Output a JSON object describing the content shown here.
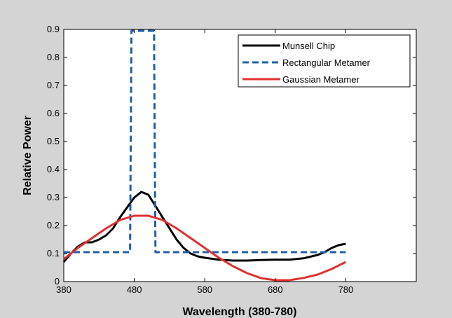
{
  "chart_data": {
    "type": "line",
    "title": "",
    "xlabel": "Wavelength (380-780)",
    "ylabel": "Relative Power",
    "xlim": [
      380,
      880
    ],
    "ylim": [
      0,
      0.9
    ],
    "xticks": [
      380,
      480,
      580,
      680,
      780
    ],
    "yticks": [
      0,
      0.1,
      0.2,
      0.3,
      0.4,
      0.5,
      0.6,
      0.7,
      0.8,
      0.9
    ],
    "grid": false,
    "legend_position": "top-right",
    "series": [
      {
        "name": "Munsell Chip",
        "color": "#000000",
        "style": "solid",
        "x": [
          380,
          390,
          400,
          410,
          420,
          430,
          440,
          450,
          460,
          470,
          480,
          490,
          500,
          510,
          520,
          530,
          540,
          550,
          560,
          570,
          580,
          600,
          620,
          640,
          660,
          680,
          700,
          720,
          740,
          750,
          760,
          770,
          780
        ],
        "y": [
          0.07,
          0.1,
          0.125,
          0.14,
          0.14,
          0.15,
          0.165,
          0.19,
          0.23,
          0.265,
          0.3,
          0.32,
          0.31,
          0.27,
          0.23,
          0.19,
          0.15,
          0.12,
          0.1,
          0.09,
          0.085,
          0.078,
          0.075,
          0.075,
          0.077,
          0.078,
          0.078,
          0.083,
          0.095,
          0.105,
          0.12,
          0.13,
          0.135
        ]
      },
      {
        "name": "Rectangular Metamer",
        "color": "#1f5fa8",
        "style": "dashed",
        "x": [
          380,
          474,
          476,
          480,
          505,
          508,
          510,
          780
        ],
        "y": [
          0.105,
          0.105,
          0.895,
          0.895,
          0.895,
          0.895,
          0.105,
          0.105
        ]
      },
      {
        "name": "Gaussian Metamer",
        "color": "#e03030",
        "style": "solid",
        "x": [
          380,
          400,
          420,
          440,
          460,
          480,
          500,
          520,
          540,
          560,
          580,
          600,
          620,
          640,
          660,
          680,
          700,
          720,
          740,
          760,
          780
        ],
        "y": [
          0.08,
          0.12,
          0.155,
          0.19,
          0.22,
          0.235,
          0.235,
          0.22,
          0.19,
          0.155,
          0.12,
          0.085,
          0.055,
          0.03,
          0.012,
          0.005,
          0.005,
          0.013,
          0.025,
          0.045,
          0.07
        ]
      }
    ]
  }
}
